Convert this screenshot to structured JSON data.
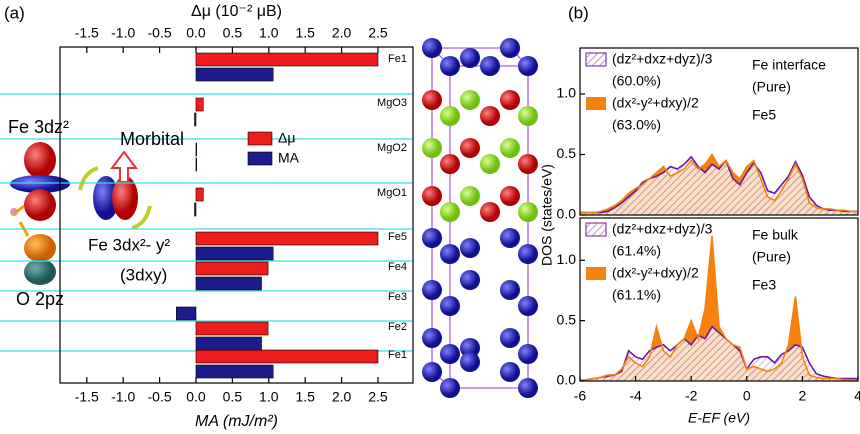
{
  "chart_data": [
    {
      "type": "hbar",
      "panel_label": "(a)",
      "xlabel": "MA (mJ/m²)",
      "x2label": "Δμ (10⁻² μB)",
      "xlim": [
        -1.868,
        2.981
      ],
      "x2lim": [
        -1.868,
        2.981
      ],
      "xticks": [
        -1.5,
        {
          "value": -1,
          "label": "-1.0"
        },
        -0.5,
        {
          "value": 0,
          "label": "0.0"
        },
        0.5,
        {
          "value": 1,
          "label": "1.0"
        },
        1.5,
        {
          "value": 2,
          "label": "2.0"
        },
        2.5
      ],
      "x2ticks": [
        -1.5,
        {
          "value": -1,
          "label": "-1.0"
        },
        -0.5,
        {
          "value": 0,
          "label": "0.0"
        },
        0.5,
        {
          "value": 1,
          "label": "1.0"
        },
        1.5,
        {
          "value": 2,
          "label": "2.0"
        },
        2.5
      ],
      "categories": [
        "Fe1",
        "MgO3",
        "MgO2",
        "MgO1",
        "Fe5",
        "Fe4",
        "Fe3",
        "Fe2",
        "Fe1"
      ],
      "series": [
        {
          "name": "Δμ",
          "color": "#ee1c1c",
          "axis": "x2",
          "values": [
            2.5,
            0.1,
            0.01,
            0.1,
            2.5,
            0.99,
            0,
            0.99,
            2.5
          ]
        },
        {
          "name": "MA",
          "color": "#1c1c8c",
          "values": [
            1.06,
            -0.02,
            0.01,
            -0.02,
            1.06,
            0.9,
            -0.27,
            0.9,
            1.06
          ]
        }
      ],
      "annotations": [
        "Fe 3dz²",
        "Morbital",
        "Fe 3dx²- y²",
        "(3dxy)",
        "O 2pz"
      ]
    },
    {
      "type": "line",
      "panel_label": "(b)",
      "ylabel": "DOS (states/eV)",
      "xlim": [
        -6,
        4
      ],
      "ylim": [
        0,
        1.38
      ],
      "yticks": [
        {
          "value": 0,
          "label": "0.0"
        },
        0.5,
        {
          "value": 1,
          "label": "1.0"
        }
      ],
      "x": [
        -6,
        -5.75,
        -5.5,
        -5.25,
        -5,
        -4.75,
        -4.5,
        -4.25,
        -4,
        -3.75,
        -3.5,
        -3.25,
        -3,
        -2.75,
        -2.5,
        -2.25,
        -2,
        -1.75,
        -1.5,
        -1.25,
        -1,
        -0.75,
        -0.5,
        -0.25,
        0,
        0.25,
        0.5,
        0.75,
        1,
        1.25,
        1.5,
        1.75,
        2,
        2.25,
        2.5,
        2.75,
        3,
        3.25,
        3.5,
        3.75,
        4
      ],
      "series": [
        {
          "name": "(dz²+dxz+dyz)/3",
          "color": "#6a1a9a",
          "fill": "hatch",
          "values": [
            0.02,
            0.02,
            0.02,
            0.02,
            0.03,
            0.06,
            0.1,
            0.15,
            0.2,
            0.27,
            0.3,
            0.32,
            0.35,
            0.4,
            0.38,
            0.42,
            0.48,
            0.4,
            0.35,
            0.42,
            0.38,
            0.45,
            0.3,
            0.25,
            0.35,
            0.43,
            0.35,
            0.2,
            0.18,
            0.25,
            0.32,
            0.44,
            0.33,
            0.15,
            0.08,
            0.05,
            0.04,
            0.04,
            0.03,
            0.03,
            0.03
          ]
        },
        {
          "name": "(dx²-y²+dxy)/2",
          "color": "#f5820f",
          "fill": "solid",
          "values": [
            0.02,
            0.02,
            0.02,
            0.03,
            0.05,
            0.08,
            0.12,
            0.18,
            0.22,
            0.25,
            0.3,
            0.35,
            0.4,
            0.32,
            0.35,
            0.38,
            0.45,
            0.38,
            0.42,
            0.5,
            0.4,
            0.45,
            0.35,
            0.3,
            0.4,
            0.45,
            0.3,
            0.15,
            0.12,
            0.2,
            0.3,
            0.42,
            0.3,
            0.1,
            0.06,
            0.05,
            0.05,
            0.04,
            0.04,
            0.03,
            0.03
          ]
        }
      ],
      "series_notes": [
        "(60.0%)",
        "(63.0%)"
      ],
      "annotations": [
        "Fe interface",
        "(Pure)",
        "Fe5"
      ]
    },
    {
      "type": "line",
      "xlabel": "E-EF (eV)",
      "xlim": [
        -6,
        4
      ],
      "ylim": [
        0,
        1.35
      ],
      "xticks": [
        -6,
        -4,
        -2,
        0,
        2,
        4
      ],
      "yticks": [
        {
          "value": 0,
          "label": "0.0"
        },
        0.5,
        {
          "value": 1,
          "label": "1.0"
        }
      ],
      "x": [
        -6,
        -5.75,
        -5.5,
        -5.25,
        -5,
        -4.75,
        -4.5,
        -4.25,
        -4,
        -3.75,
        -3.5,
        -3.25,
        -3,
        -2.75,
        -2.5,
        -2.25,
        -2,
        -1.75,
        -1.5,
        -1.25,
        -1,
        -0.75,
        -0.5,
        -0.25,
        0,
        0.25,
        0.5,
        0.75,
        1,
        1.25,
        1.5,
        1.75,
        2,
        2.25,
        2.5,
        2.75,
        3,
        3.25,
        3.5,
        3.75,
        4
      ],
      "series": [
        {
          "name": "(dz²+dxz+dyz)/3",
          "color": "#6a1a9a",
          "fill": "hatch",
          "values": [
            0.01,
            0.01,
            0.02,
            0.03,
            0.04,
            0.05,
            0.08,
            0.25,
            0.2,
            0.18,
            0.25,
            0.28,
            0.3,
            0.25,
            0.3,
            0.35,
            0.3,
            0.38,
            0.35,
            0.45,
            0.4,
            0.35,
            0.3,
            0.25,
            0.1,
            0.18,
            0.2,
            0.2,
            0.15,
            0.22,
            0.25,
            0.3,
            0.28,
            0.15,
            0.06,
            0.04,
            0.03,
            0.02,
            0.02,
            0.02,
            0.02
          ]
        },
        {
          "name": "(dx²-y²+dxy)/2",
          "color": "#f5820f",
          "fill": "solid",
          "values": [
            0.01,
            0.01,
            0.02,
            0.03,
            0.05,
            0.05,
            0.1,
            0.2,
            0.15,
            0.12,
            0.2,
            0.45,
            0.25,
            0.2,
            0.3,
            0.35,
            0.5,
            0.35,
            0.6,
            1.2,
            0.45,
            0.35,
            0.3,
            0.28,
            0.1,
            0.12,
            0.1,
            0.08,
            0.1,
            0.15,
            0.3,
            0.7,
            0.2,
            0.05,
            0.03,
            0.02,
            0.02,
            0.02,
            0.01,
            0.01,
            0.01
          ]
        }
      ],
      "series_notes": [
        "(61.4%)",
        "(61.1%)"
      ],
      "annotations": [
        "Fe bulk",
        "(Pure)",
        "Fe3"
      ]
    }
  ]
}
